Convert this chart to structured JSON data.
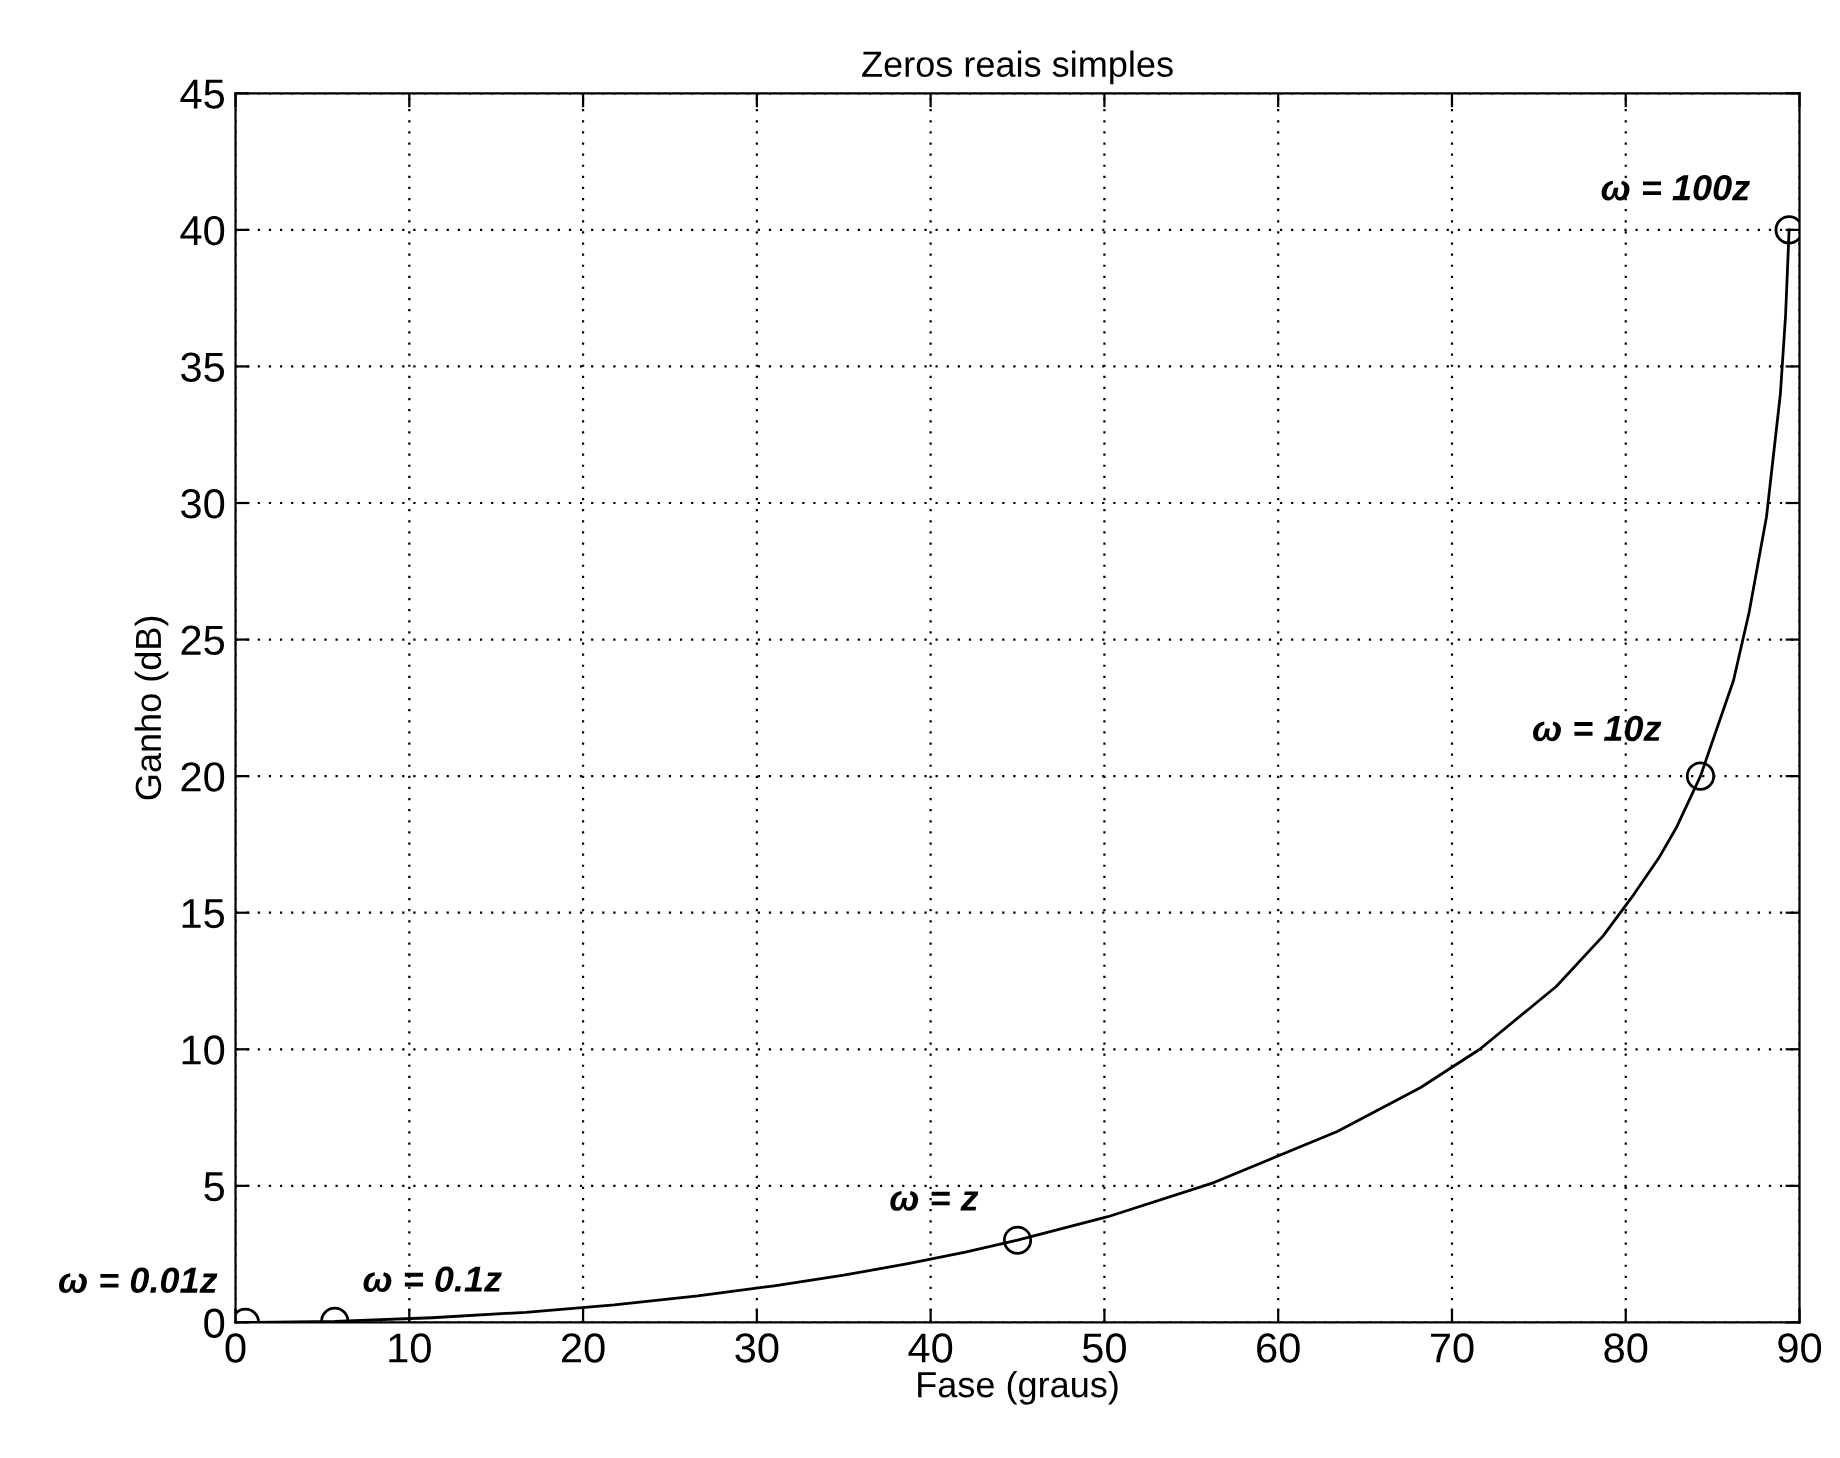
{
  "chart_data": {
    "type": "line",
    "title": "Zeros reais simples",
    "xlabel": "Fase (graus)",
    "ylabel": "Ganho (dB)",
    "xlim": [
      0,
      90
    ],
    "ylim": [
      0,
      45
    ],
    "xticks": [
      0,
      10,
      20,
      30,
      40,
      50,
      60,
      70,
      80,
      90
    ],
    "yticks": [
      0,
      5,
      10,
      15,
      20,
      25,
      30,
      35,
      40,
      45
    ],
    "grid": true,
    "legend": false,
    "series": [
      {
        "color": "#000000",
        "marker": "none",
        "line_style": "solid",
        "x": [
          0.57,
          5.71,
          11.3,
          16.7,
          21.8,
          26.6,
          31.0,
          35.0,
          38.7,
          42.0,
          45.0,
          50.2,
          56.3,
          63.4,
          68.2,
          71.6,
          76.0,
          78.7,
          80.5,
          81.9,
          82.9,
          84.3,
          86.2,
          87.1,
          88.1,
          88.9,
          89.2,
          89.4
        ],
        "values": [
          0.0,
          0.04,
          0.17,
          0.37,
          0.64,
          0.97,
          1.34,
          1.73,
          2.15,
          2.57,
          3.01,
          3.87,
          5.12,
          6.99,
          8.6,
          10.0,
          12.3,
          14.15,
          15.7,
          17.0,
          18.1,
          20.0,
          23.5,
          26.0,
          29.5,
          34.0,
          36.9,
          40.0
        ]
      },
      {
        "type": "scatter",
        "color": "#000000",
        "marker": "circle",
        "x": [
          0.57,
          5.71,
          45.0,
          84.3,
          89.4
        ],
        "values": [
          0.0,
          0.04,
          3.01,
          20.0,
          40.0
        ]
      }
    ],
    "annotations": [
      {
        "text": "ω = 0.01z",
        "x": 0.57,
        "y": 0.0
      },
      {
        "text": "ω = 0.1z",
        "x": 5.71,
        "y": 0.04
      },
      {
        "text": "ω = z",
        "x": 45.0,
        "y": 3.01
      },
      {
        "text": "ω = 10z",
        "x": 84.3,
        "y": 20.0
      },
      {
        "text": "ω = 100z",
        "x": 89.4,
        "y": 40.0
      }
    ]
  }
}
